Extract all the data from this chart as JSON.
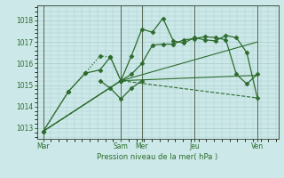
{
  "bg_color": "#cce8e8",
  "grid_color": "#aacccc",
  "line_color": "#2d6b2d",
  "xlabel": "Pression niveau de la mer( hPa )",
  "ylim": [
    1012.5,
    1018.7
  ],
  "yticks": [
    1013,
    1014,
    1015,
    1016,
    1017,
    1018
  ],
  "xlim": [
    0,
    11.5
  ],
  "x_day_labels": [
    "Mar",
    "Sam",
    "Mer",
    "Jeu",
    "Ven"
  ],
  "x_day_positions": [
    0.3,
    4.0,
    5.0,
    7.5,
    10.5
  ],
  "vline_positions": [
    0.3,
    4.0,
    5.0,
    7.5,
    10.5
  ],
  "series": [
    {
      "x": [
        0.3,
        1.5,
        2.3,
        3.0,
        3.5,
        4.0
      ],
      "y": [
        1012.85,
        1014.7,
        1015.55,
        1016.35,
        1016.3,
        1015.2
      ],
      "linestyle": ":",
      "marker": "D",
      "markersize": 2.5,
      "linewidth": 0.9
    },
    {
      "x": [
        0.3,
        1.5,
        2.3,
        3.0,
        3.5,
        4.0
      ],
      "y": [
        1012.85,
        1014.7,
        1015.55,
        1015.7,
        1016.3,
        1015.2
      ],
      "linestyle": "-",
      "marker": "D",
      "markersize": 2.5,
      "linewidth": 0.9
    },
    {
      "x": [
        4.0,
        4.5,
        5.0,
        5.5,
        6.0,
        6.5,
        7.0,
        7.5,
        8.0,
        8.5,
        9.0,
        9.5,
        10.0,
        10.5
      ],
      "y": [
        1015.2,
        1016.35,
        1017.6,
        1017.45,
        1018.1,
        1017.05,
        1016.95,
        1017.2,
        1017.1,
        1017.05,
        1017.3,
        1017.2,
        1016.5,
        1014.4
      ],
      "linestyle": "-",
      "marker": "D",
      "markersize": 2.5,
      "linewidth": 0.9
    },
    {
      "x": [
        4.0,
        4.5,
        5.0,
        5.5,
        6.0,
        6.5,
        7.0,
        7.5,
        8.0,
        8.5,
        9.0,
        9.5,
        10.0,
        10.5
      ],
      "y": [
        1015.2,
        1015.5,
        1016.0,
        1016.85,
        1016.9,
        1016.9,
        1017.1,
        1017.15,
        1017.25,
        1017.2,
        1017.1,
        1015.5,
        1015.05,
        1015.5
      ],
      "linestyle": "-",
      "marker": "D",
      "markersize": 2.5,
      "linewidth": 0.9
    },
    {
      "x": [
        0.3,
        4.0,
        10.5
      ],
      "y": [
        1012.85,
        1015.2,
        1017.0
      ],
      "linestyle": "-",
      "marker": null,
      "markersize": 0,
      "linewidth": 0.8
    },
    {
      "x": [
        0.3,
        4.0,
        10.5
      ],
      "y": [
        1012.85,
        1015.2,
        1015.45
      ],
      "linestyle": "-",
      "marker": null,
      "markersize": 0,
      "linewidth": 0.8
    },
    {
      "x": [
        0.3,
        4.0,
        10.5
      ],
      "y": [
        1012.85,
        1015.2,
        1014.4
      ],
      "linestyle": "--",
      "marker": null,
      "markersize": 0,
      "linewidth": 0.8
    },
    {
      "x": [
        3.0,
        3.5,
        4.0,
        4.5,
        5.0
      ],
      "y": [
        1015.2,
        1014.85,
        1014.35,
        1014.85,
        1015.2
      ],
      "linestyle": "-",
      "marker": "D",
      "markersize": 2.5,
      "linewidth": 0.9
    }
  ]
}
